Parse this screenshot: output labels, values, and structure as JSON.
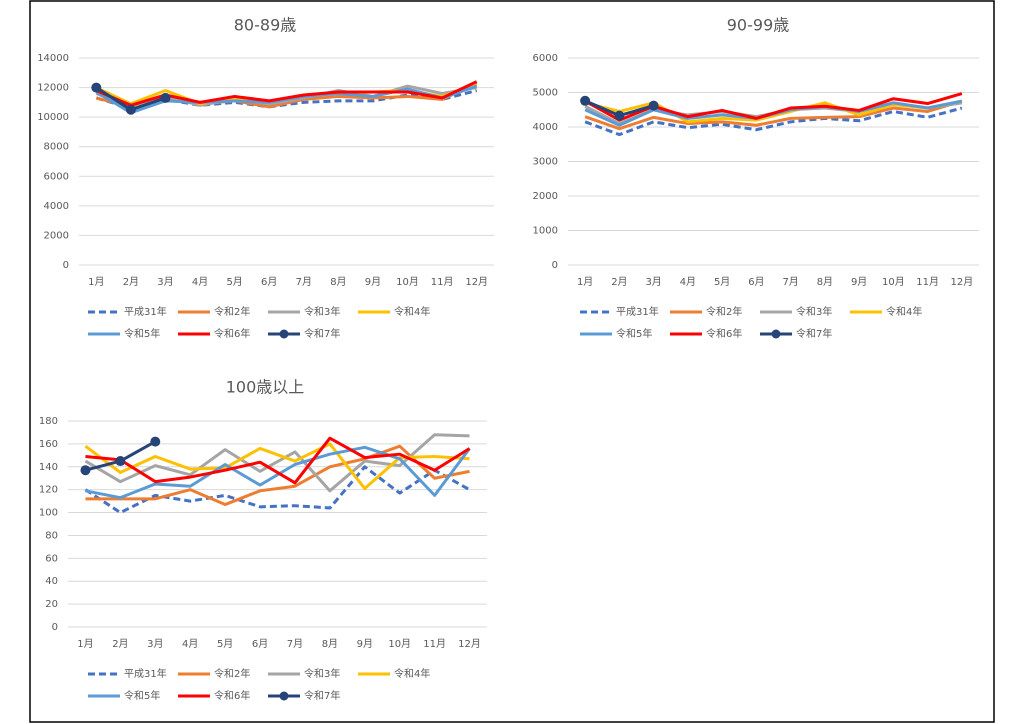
{
  "chart_data": [
    {
      "type": "line",
      "title": "80-89歳",
      "categories": [
        "1月",
        "2月",
        "3月",
        "4月",
        "5月",
        "6月",
        "7月",
        "8月",
        "9月",
        "10月",
        "11月",
        "12月"
      ],
      "ylim": [
        0,
        14000
      ],
      "yticks": [
        0,
        2000,
        4000,
        6000,
        8000,
        10000,
        12000,
        14000
      ],
      "grid": true,
      "legend": "bottom",
      "series": [
        {
          "name": "平成31年",
          "color": "#4472c4",
          "style": "dashed",
          "values": [
            11300,
            10600,
            11200,
            10800,
            11000,
            10700,
            11000,
            11100,
            11100,
            11500,
            11200,
            11800
          ]
        },
        {
          "name": "令和2年",
          "color": "#ed7d31",
          "values": [
            11300,
            10700,
            11300,
            10900,
            11100,
            10700,
            11200,
            11400,
            11300,
            11400,
            11200,
            12300
          ]
        },
        {
          "name": "令和3年",
          "color": "#a5a5a5",
          "values": [
            11600,
            10700,
            11400,
            10800,
            11200,
            10900,
            11300,
            11800,
            11400,
            12100,
            11600,
            12000
          ]
        },
        {
          "name": "令和4年",
          "color": "#ffc000",
          "values": [
            12000,
            10900,
            11800,
            10900,
            11300,
            11000,
            11500,
            11600,
            11700,
            11800,
            11400,
            12200
          ]
        },
        {
          "name": "令和5年",
          "color": "#5b9bd5",
          "values": [
            11700,
            10300,
            11100,
            11000,
            11100,
            11000,
            11400,
            11600,
            11400,
            11900,
            11300,
            12100
          ]
        },
        {
          "name": "令和6年",
          "color": "#ff0000",
          "values": [
            11800,
            10800,
            11500,
            11000,
            11400,
            11100,
            11500,
            11700,
            11700,
            11700,
            11300,
            12400
          ]
        },
        {
          "name": "令和7年",
          "color": "#264478",
          "markers": true,
          "values": [
            12000,
            10500,
            11300,
            null,
            null,
            null,
            null,
            null,
            null,
            null,
            null,
            null
          ]
        }
      ]
    },
    {
      "type": "line",
      "title": "90-99歳",
      "categories": [
        "1月",
        "2月",
        "3月",
        "4月",
        "5月",
        "6月",
        "7月",
        "8月",
        "9月",
        "10月",
        "11月",
        "12月"
      ],
      "ylim": [
        0,
        6000
      ],
      "yticks": [
        0,
        1000,
        2000,
        3000,
        4000,
        5000,
        6000
      ],
      "grid": true,
      "legend": "bottom",
      "series": [
        {
          "name": "平成31年",
          "color": "#4472c4",
          "style": "dashed",
          "values": [
            4150,
            3780,
            4150,
            3980,
            4080,
            3920,
            4150,
            4250,
            4180,
            4450,
            4280,
            4550
          ]
        },
        {
          "name": "令和2年",
          "color": "#ed7d31",
          "values": [
            4300,
            3950,
            4280,
            4100,
            4150,
            4050,
            4250,
            4280,
            4300,
            4550,
            4450,
            4750
          ]
        },
        {
          "name": "令和3年",
          "color": "#a5a5a5",
          "values": [
            4600,
            4100,
            4500,
            4350,
            4450,
            4300,
            4500,
            4550,
            4450,
            4700,
            4550,
            4700
          ]
        },
        {
          "name": "令和4年",
          "color": "#ffc000",
          "values": [
            4700,
            4450,
            4700,
            4150,
            4250,
            4200,
            4450,
            4700,
            4350,
            4650,
            4550,
            4750
          ]
        },
        {
          "name": "令和5年",
          "color": "#5b9bd5",
          "values": [
            4500,
            4050,
            4500,
            4250,
            4350,
            4250,
            4500,
            4600,
            4450,
            4700,
            4550,
            4750
          ]
        },
        {
          "name": "令和6年",
          "color": "#ff0000",
          "values": [
            4750,
            4200,
            4600,
            4300,
            4480,
            4250,
            4550,
            4600,
            4480,
            4820,
            4680,
            4970
          ]
        },
        {
          "name": "令和7年",
          "color": "#264478",
          "markers": true,
          "values": [
            4760,
            4330,
            4620,
            null,
            null,
            null,
            null,
            null,
            null,
            null,
            null,
            null
          ]
        }
      ]
    },
    {
      "type": "line",
      "title": "100歳以上",
      "categories": [
        "1月",
        "2月",
        "3月",
        "4月",
        "5月",
        "6月",
        "7月",
        "8月",
        "9月",
        "10月",
        "11月",
        "12月"
      ],
      "ylim": [
        0,
        180
      ],
      "yticks": [
        0,
        20,
        40,
        60,
        80,
        100,
        120,
        140,
        160,
        180
      ],
      "grid": true,
      "legend": "bottom",
      "series": [
        {
          "name": "平成31年",
          "color": "#4472c4",
          "style": "dashed",
          "values": [
            120,
            100,
            115,
            110,
            115,
            105,
            106,
            104,
            140,
            117,
            137,
            120
          ]
        },
        {
          "name": "令和2年",
          "color": "#ed7d31",
          "values": [
            112,
            112,
            112,
            120,
            107,
            119,
            123,
            140,
            147,
            158,
            130,
            136
          ]
        },
        {
          "name": "令和3年",
          "color": "#a5a5a5",
          "values": [
            145,
            127,
            141,
            133,
            155,
            136,
            153,
            119,
            145,
            141,
            168,
            167
          ]
        },
        {
          "name": "令和4年",
          "color": "#ffc000",
          "values": [
            158,
            135,
            149,
            138,
            139,
            156,
            145,
            160,
            121,
            148,
            149,
            147
          ]
        },
        {
          "name": "令和5年",
          "color": "#5b9bd5",
          "values": [
            119,
            113,
            125,
            123,
            142,
            124,
            142,
            151,
            157,
            147,
            115,
            156
          ]
        },
        {
          "name": "令和6年",
          "color": "#ff0000",
          "values": [
            149,
            146,
            127,
            131,
            137,
            144,
            126,
            165,
            148,
            151,
            137,
            156
          ]
        },
        {
          "name": "令和7年",
          "color": "#264478",
          "markers": true,
          "values": [
            137,
            145,
            162,
            null,
            null,
            null,
            null,
            null,
            null,
            null,
            null,
            null
          ]
        }
      ]
    }
  ]
}
